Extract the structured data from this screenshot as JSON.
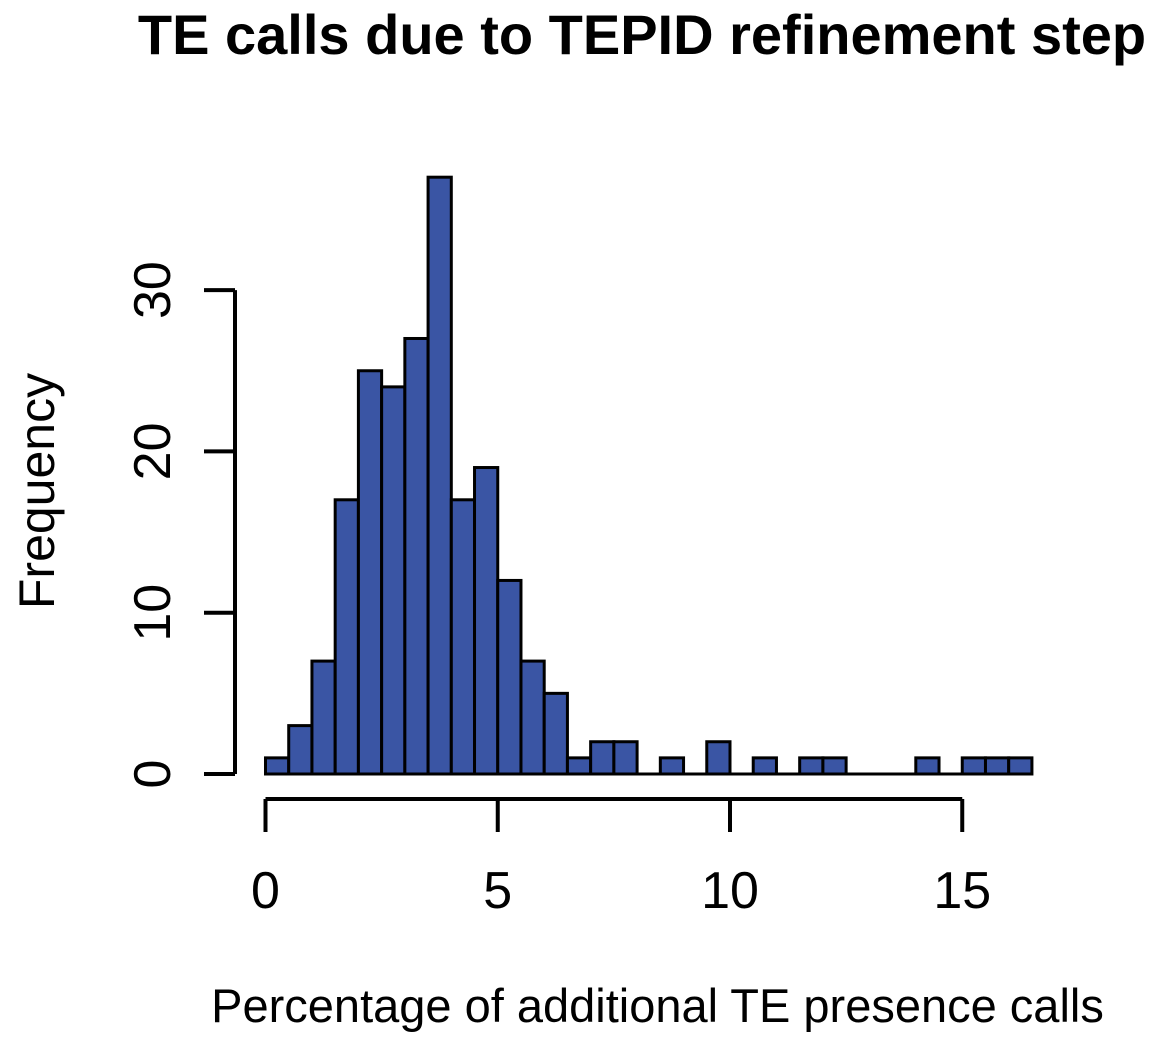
{
  "page": {
    "background": "#FFFFFF"
  },
  "chart_data": {
    "type": "bar",
    "subtype": "histogram",
    "title": "TE calls due to TEPID refinement step",
    "xlabel": "Percentage of additional TE presence calls",
    "ylabel": "Frequency",
    "bin_start": 0,
    "bin_width": 0.5,
    "counts": [
      1,
      3,
      7,
      17,
      25,
      24,
      27,
      37,
      17,
      19,
      12,
      7,
      5,
      1,
      2,
      2,
      0,
      1,
      0,
      2,
      0,
      1,
      0,
      1,
      1,
      0,
      0,
      0,
      1,
      0,
      1,
      1,
      1
    ],
    "x_ticks": [
      0,
      5,
      10,
      15
    ],
    "y_ticks": [
      0,
      10,
      20,
      30
    ],
    "xlim": [
      0,
      16.5
    ],
    "ylim": [
      0,
      37
    ],
    "grid": false,
    "legend": "none",
    "colors": {
      "bar_fill": "#3A55A4",
      "bar_stroke": "#000000",
      "axis": "#000000",
      "text": "#000000"
    }
  }
}
